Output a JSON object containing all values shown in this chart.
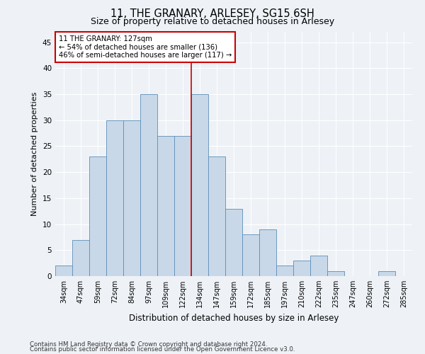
{
  "title": "11, THE GRANARY, ARLESEY, SG15 6SH",
  "subtitle": "Size of property relative to detached houses in Arlesey",
  "xlabel": "Distribution of detached houses by size in Arlesey",
  "ylabel": "Number of detached properties",
  "footnote1": "Contains HM Land Registry data © Crown copyright and database right 2024.",
  "footnote2": "Contains public sector information licensed under the Open Government Licence v3.0.",
  "bins": [
    "34sqm",
    "47sqm",
    "59sqm",
    "72sqm",
    "84sqm",
    "97sqm",
    "109sqm",
    "122sqm",
    "134sqm",
    "147sqm",
    "159sqm",
    "172sqm",
    "185sqm",
    "197sqm",
    "210sqm",
    "222sqm",
    "235sqm",
    "247sqm",
    "260sqm",
    "272sqm",
    "285sqm"
  ],
  "values": [
    2,
    7,
    23,
    30,
    30,
    35,
    27,
    27,
    35,
    23,
    13,
    8,
    9,
    2,
    3,
    4,
    1,
    0,
    0,
    1,
    0
  ],
  "bar_color": "#c8d8e8",
  "bar_edge_color": "#5b8db8",
  "vline_color": "#cc0000",
  "annotation_text1": "11 THE GRANARY: 127sqm",
  "annotation_text2": "← 54% of detached houses are smaller (136)",
  "annotation_text3": "46% of semi-detached houses are larger (117) →",
  "annotation_box_facecolor": "#ffffff",
  "annotation_box_edgecolor": "#cc0000",
  "ylim": [
    0,
    47
  ],
  "yticks": [
    0,
    5,
    10,
    15,
    20,
    25,
    30,
    35,
    40,
    45
  ],
  "background_color": "#eef2f7",
  "grid_color": "#ffffff",
  "title_fontsize": 10.5,
  "subtitle_fontsize": 9
}
